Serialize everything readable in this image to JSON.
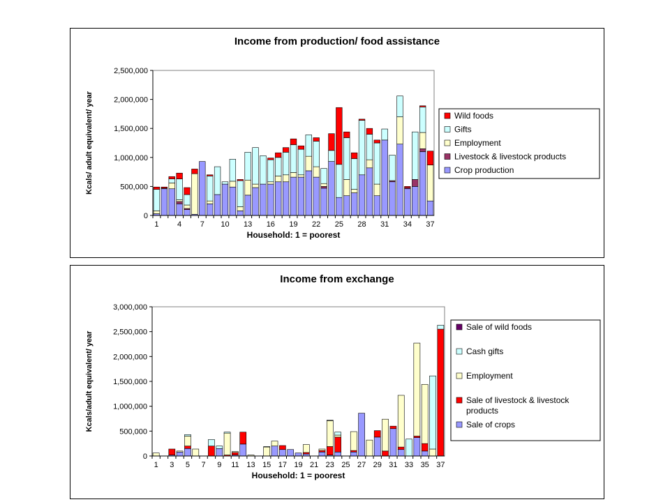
{
  "chart_data": [
    {
      "type": "bar",
      "stacked": true,
      "title": "Income from production/ food assistance",
      "xlabel": "Household: 1 = poorest",
      "ylabel": "Kcals/ adult equivalent/ year",
      "ylim": [
        0,
        2500000
      ],
      "yticks": [
        "0",
        "500,000",
        "1,000,000",
        "1,500,000",
        "2,000,000",
        "2,500,000"
      ],
      "ytick_values": [
        0,
        500000,
        1000000,
        1500000,
        2000000,
        2500000
      ],
      "categories": [
        "1",
        "2",
        "3",
        "4",
        "5",
        "6",
        "7",
        "8",
        "9",
        "10",
        "11",
        "12",
        "13",
        "14",
        "15",
        "16",
        "17",
        "18",
        "19",
        "20",
        "21",
        "22",
        "23",
        "24",
        "25",
        "26",
        "27",
        "28",
        "29",
        "30",
        "31",
        "32",
        "33",
        "34",
        "35",
        "36",
        "37"
      ],
      "xtick_labels": [
        "1",
        "",
        "",
        "4",
        "",
        "",
        "7",
        "",
        "",
        "10",
        "",
        "",
        "13",
        "",
        "",
        "16",
        "",
        "",
        "19",
        "",
        "",
        "22",
        "",
        "",
        "25",
        "",
        "",
        "28",
        "",
        "",
        "31",
        "",
        "",
        "34",
        "",
        "",
        "37"
      ],
      "grid": false,
      "legend_position": "right",
      "series": [
        {
          "name": "Crop production",
          "color": "#9999FF",
          "values": [
            30000,
            460000,
            460000,
            200000,
            100000,
            20000,
            930000,
            200000,
            360000,
            540000,
            490000,
            80000,
            350000,
            480000,
            540000,
            540000,
            580000,
            580000,
            660000,
            660000,
            770000,
            660000,
            470000,
            930000,
            310000,
            340000,
            390000,
            700000,
            820000,
            340000,
            1300000,
            580000,
            1230000,
            460000,
            500000,
            1100000,
            250000
          ]
        },
        {
          "name": "Livestock & livestock products",
          "color": "#993366",
          "values": [
            0,
            0,
            0,
            40000,
            20000,
            0,
            0,
            0,
            0,
            0,
            0,
            0,
            0,
            0,
            0,
            0,
            0,
            0,
            0,
            0,
            0,
            0,
            30000,
            0,
            0,
            0,
            0,
            0,
            0,
            0,
            0,
            20000,
            0,
            20000,
            120000,
            50000,
            0
          ]
        },
        {
          "name": "Employment",
          "color": "#FFFFCC",
          "values": [
            50000,
            0,
            100000,
            30000,
            60000,
            700000,
            0,
            50000,
            0,
            0,
            100000,
            70000,
            260000,
            60000,
            0,
            40000,
            100000,
            120000,
            80000,
            40000,
            250000,
            180000,
            50000,
            0,
            0,
            280000,
            60000,
            0,
            140000,
            200000,
            0,
            0,
            470000,
            0,
            0,
            280000,
            620000
          ]
        },
        {
          "name": "Gifts",
          "color": "#CCFFFF",
          "values": [
            370000,
            10000,
            70000,
            360000,
            180000,
            0,
            0,
            430000,
            480000,
            40000,
            380000,
            450000,
            480000,
            630000,
            490000,
            380000,
            320000,
            390000,
            480000,
            440000,
            370000,
            440000,
            260000,
            190000,
            570000,
            720000,
            530000,
            940000,
            440000,
            710000,
            190000,
            440000,
            360000,
            0,
            820000,
            440000,
            0
          ]
        },
        {
          "name": "Wild foods",
          "color": "#FF0000",
          "values": [
            40000,
            20000,
            40000,
            100000,
            120000,
            80000,
            0,
            20000,
            0,
            0,
            0,
            20000,
            0,
            0,
            0,
            30000,
            80000,
            80000,
            100000,
            60000,
            0,
            60000,
            0,
            290000,
            980000,
            100000,
            100000,
            20000,
            100000,
            50000,
            0,
            0,
            0,
            20000,
            0,
            20000,
            240000
          ]
        }
      ]
    },
    {
      "type": "bar",
      "stacked": true,
      "title": "Income from exchange",
      "xlabel": "Household: 1 = poorest",
      "ylabel": "Kcals/adult equivalent/ year",
      "ylim": [
        0,
        3000000
      ],
      "yticks": [
        "0",
        "500,000",
        "1,000,000",
        "1,500,000",
        "2,000,000",
        "2,500,000",
        "3,000,000"
      ],
      "ytick_values": [
        0,
        500000,
        1000000,
        1500000,
        2000000,
        2500000,
        3000000
      ],
      "categories": [
        "1",
        "2",
        "3",
        "4",
        "5",
        "6",
        "7",
        "8",
        "9",
        "10",
        "11",
        "12",
        "13",
        "14",
        "15",
        "16",
        "17",
        "18",
        "19",
        "20",
        "21",
        "22",
        "23",
        "24",
        "25",
        "26",
        "27",
        "28",
        "29",
        "30",
        "31",
        "32",
        "33",
        "34",
        "35",
        "36",
        "37"
      ],
      "xtick_labels": [
        "1",
        "",
        "3",
        "",
        "5",
        "",
        "7",
        "",
        "9",
        "",
        "11",
        "",
        "13",
        "",
        "15",
        "",
        "17",
        "",
        "19",
        "",
        "21",
        "",
        "23",
        "",
        "25",
        "",
        "27",
        "",
        "29",
        "",
        "31",
        "",
        "33",
        "",
        "35",
        "",
        "37"
      ],
      "grid": false,
      "legend_position": "right",
      "series": [
        {
          "name": "Sale of crops",
          "color": "#9999FF",
          "values": [
            0,
            0,
            20000,
            80000,
            150000,
            0,
            0,
            0,
            150000,
            0,
            20000,
            240000,
            0,
            0,
            0,
            200000,
            130000,
            130000,
            60000,
            40000,
            0,
            80000,
            20000,
            80000,
            0,
            80000,
            860000,
            0,
            380000,
            0,
            550000,
            130000,
            0,
            370000,
            100000,
            0,
            0
          ]
        },
        {
          "name": "Sale of livestock & livestock products",
          "color": "#FF0000",
          "values": [
            0,
            0,
            120000,
            0,
            50000,
            0,
            0,
            200000,
            0,
            20000,
            50000,
            240000,
            0,
            0,
            0,
            0,
            80000,
            0,
            0,
            30000,
            0,
            30000,
            170000,
            300000,
            0,
            30000,
            0,
            0,
            130000,
            100000,
            50000,
            50000,
            0,
            30000,
            150000,
            0,
            2550000
          ]
        },
        {
          "name": "Employment",
          "color": "#FFFFCC",
          "values": [
            60000,
            0,
            0,
            20000,
            200000,
            140000,
            0,
            0,
            0,
            440000,
            20000,
            0,
            20000,
            0,
            180000,
            100000,
            0,
            0,
            0,
            160000,
            0,
            30000,
            520000,
            40000,
            0,
            380000,
            0,
            320000,
            0,
            640000,
            0,
            1040000,
            0,
            1870000,
            1190000,
            140000,
            0
          ]
        },
        {
          "name": "Cash gifts",
          "color": "#CCFFFF",
          "values": [
            0,
            0,
            0,
            0,
            30000,
            0,
            0,
            130000,
            50000,
            20000,
            0,
            0,
            0,
            0,
            10000,
            0,
            0,
            0,
            0,
            0,
            0,
            0,
            10000,
            60000,
            0,
            0,
            0,
            0,
            0,
            0,
            0,
            0,
            340000,
            0,
            0,
            1470000,
            80000
          ]
        },
        {
          "name": "Sale of wild foods",
          "color": "#660066",
          "values": [
            0,
            0,
            0,
            0,
            0,
            0,
            0,
            0,
            0,
            0,
            0,
            0,
            0,
            0,
            0,
            0,
            0,
            0,
            0,
            0,
            0,
            0,
            0,
            0,
            0,
            0,
            0,
            0,
            0,
            0,
            0,
            0,
            0,
            0,
            0,
            0,
            0
          ]
        }
      ]
    }
  ]
}
